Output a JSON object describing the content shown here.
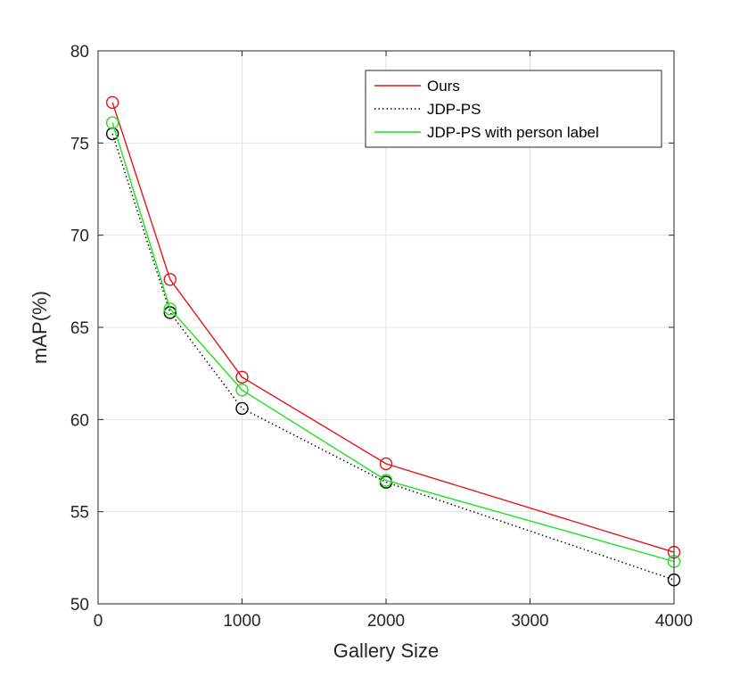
{
  "chart_data": {
    "type": "line",
    "title": "",
    "xlabel": "Gallery Size",
    "ylabel": "mAP(%)",
    "xlim": [
      0,
      4000
    ],
    "ylim": [
      50,
      80
    ],
    "xticks": [
      0,
      1000,
      2000,
      3000,
      4000
    ],
    "yticks": [
      50,
      55,
      60,
      65,
      70,
      75,
      80
    ],
    "grid": true,
    "legend_position": "top-right",
    "x": [
      100,
      500,
      1000,
      2000,
      4000
    ],
    "series": [
      {
        "name": "Ours",
        "values": [
          77.2,
          67.6,
          62.3,
          57.6,
          52.8
        ],
        "color": "#e4151b",
        "style": "solid",
        "marker": "circle"
      },
      {
        "name": "JDP-PS",
        "values": [
          75.5,
          65.8,
          60.6,
          56.6,
          51.3
        ],
        "color": "#000000",
        "style": "dotted",
        "marker": "circle"
      },
      {
        "name": "JDP-PS with person label",
        "values": [
          76.1,
          66.0,
          61.6,
          56.7,
          52.3
        ],
        "color": "#1fe01f",
        "style": "solid",
        "marker": "circle"
      }
    ]
  }
}
